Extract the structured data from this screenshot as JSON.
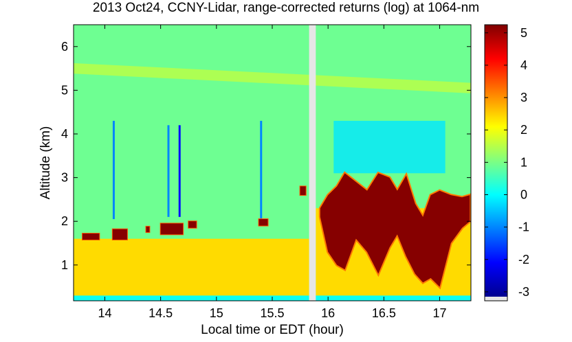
{
  "chart_data": {
    "type": "heatmap",
    "title": "2013 Oct24, CCNY-Lidar, range-corrected returns (log) at 1064-nm",
    "xlabel": "Local time or EDT (hour)",
    "ylabel": "Altitude (km)",
    "xlim": [
      13.72,
      17.28
    ],
    "ylim": [
      0.18,
      6.5
    ],
    "x_ticks": [
      "14",
      "14.5",
      "15",
      "15.5",
      "16",
      "16.5",
      "17"
    ],
    "y_ticks": [
      "1",
      "2",
      "3",
      "4",
      "5",
      "6"
    ],
    "colorbar": {
      "range": [
        -3.15,
        5.25
      ],
      "ticks": [
        "-3",
        "-2",
        "-1",
        "0",
        "1",
        "2",
        "3",
        "4",
        "5"
      ],
      "colormap": [
        "#00008f",
        "#0000ff",
        "#0080ff",
        "#00ffff",
        "#80ff80",
        "#ffff00",
        "#ff8000",
        "#ff0000",
        "#800000"
      ]
    },
    "data_gap": [
      15.83,
      15.89
    ],
    "background_value": 0.9,
    "lower_layer": {
      "top_before_gap": 1.6,
      "top_after_gap": 2.3,
      "value": 2.4
    },
    "bottom_band": {
      "top_km": 0.3,
      "value": 0.1
    },
    "upper_layer": {
      "altitude_at_start": 5.5,
      "altitude_at_end": 5.05,
      "value": 1.6
    },
    "clouds_before_gap": [
      {
        "x": [
          13.8,
          13.95
        ],
        "y": [
          1.58,
          1.72
        ],
        "value": 5.2
      },
      {
        "x": [
          14.07,
          14.2
        ],
        "y": [
          1.58,
          1.82
        ],
        "value": 5.2
      },
      {
        "x": [
          14.37,
          14.4
        ],
        "y": [
          1.75,
          1.88
        ],
        "value": 5.2
      },
      {
        "x": [
          14.5,
          14.7
        ],
        "y": [
          1.7,
          1.95
        ],
        "value": 5.2
      },
      {
        "x": [
          14.75,
          14.82
        ],
        "y": [
          1.85,
          2.0
        ],
        "value": 5.2
      },
      {
        "x": [
          15.38,
          15.46
        ],
        "y": [
          1.9,
          2.05
        ],
        "value": 5.2
      },
      {
        "x": [
          15.75,
          15.8
        ],
        "y": [
          2.6,
          2.8
        ],
        "value": 5.2
      }
    ],
    "dark_columns": [
      {
        "x": 14.08,
        "y": [
          2.05,
          4.3
        ],
        "value": -1.0
      },
      {
        "x": 14.57,
        "y": [
          2.1,
          4.2
        ],
        "value": -1.0
      },
      {
        "x": 14.67,
        "y": [
          2.1,
          4.2
        ],
        "value": -2.0
      },
      {
        "x": 15.4,
        "y": [
          2.0,
          4.3
        ],
        "value": -1.0
      }
    ],
    "cloud_after_gap": {
      "value": 5.2,
      "x": [
        15.93,
        16.0,
        16.08,
        16.15,
        16.25,
        16.35,
        16.45,
        16.55,
        16.62,
        16.7,
        16.78,
        16.85,
        16.92,
        17.0,
        17.1,
        17.2,
        17.27
      ],
      "top": [
        2.3,
        2.6,
        2.8,
        3.1,
        2.9,
        2.7,
        3.1,
        3.0,
        2.7,
        3.05,
        2.4,
        2.1,
        2.6,
        2.7,
        2.6,
        2.55,
        2.6
      ],
      "bottom": [
        2.1,
        1.3,
        1.0,
        0.9,
        1.6,
        1.3,
        0.8,
        1.4,
        1.7,
        1.2,
        0.8,
        0.6,
        0.7,
        0.5,
        1.5,
        1.85,
        2.0
      ]
    },
    "clear_region_after_gap": {
      "x": [
        16.05,
        17.05
      ],
      "y": [
        3.1,
        4.3
      ],
      "value": -0.2
    }
  }
}
